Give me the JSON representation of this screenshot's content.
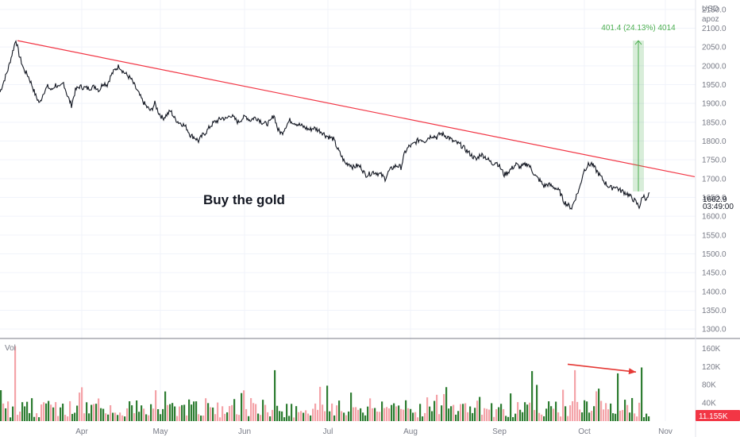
{
  "chart_data": {
    "type": "line",
    "currency": "USD",
    "unit": "apoz",
    "annotation_text": "Buy the gold",
    "price_axis": {
      "ylim": [
        1275,
        2175
      ],
      "ticks": [
        1300,
        1350,
        1400,
        1450,
        1500,
        1550,
        1600,
        1650,
        1700,
        1750,
        1800,
        1850,
        1900,
        1950,
        2000,
        2050,
        2100,
        2150
      ],
      "tick_labels": [
        "1300.0",
        "1350.0",
        "1400.0",
        "1450.0",
        "1500.0",
        "1550.0",
        "1600.0",
        "1650.0",
        "1700.0",
        "1750.0",
        "1800.0",
        "1850.0",
        "1900.0",
        "1950.0",
        "2000.0",
        "2050.0",
        "2100.0",
        "2150.0"
      ]
    },
    "volume_axis": {
      "label": "Vol",
      "ylim": [
        0,
        180000
      ],
      "ticks": [
        40000,
        80000,
        120000,
        160000
      ],
      "tick_labels": [
        "40K",
        "80K",
        "120K",
        "160K"
      ]
    },
    "time_axis": {
      "months": [
        "Apr",
        "May",
        "Jun",
        "Jul",
        "Aug",
        "Sep",
        "Oct",
        "Nov"
      ]
    },
    "price_series": {
      "points": [
        [
          0,
          1930
        ],
        [
          5,
          1960
        ],
        [
          10,
          1990
        ],
        [
          15,
          2030
        ],
        [
          20,
          2070
        ],
        [
          24,
          2030
        ],
        [
          30,
          1990
        ],
        [
          35,
          1975
        ],
        [
          40,
          1950
        ],
        [
          45,
          1920
        ],
        [
          50,
          1900
        ],
        [
          55,
          1930
        ],
        [
          60,
          1945
        ],
        [
          65,
          1935
        ],
        [
          70,
          1950
        ],
        [
          75,
          1940
        ],
        [
          80,
          1955
        ],
        [
          85,
          1920
        ],
        [
          90,
          1895
        ],
        [
          95,
          1935
        ],
        [
          100,
          1945
        ],
        [
          110,
          1940
        ],
        [
          120,
          1945
        ],
        [
          125,
          1935
        ],
        [
          130,
          1955
        ],
        [
          135,
          1950
        ],
        [
          140,
          1975
        ],
        [
          145,
          1990
        ],
        [
          150,
          2000
        ],
        [
          155,
          1985
        ],
        [
          160,
          1975
        ],
        [
          165,
          1965
        ],
        [
          170,
          1945
        ],
        [
          175,
          1925
        ],
        [
          180,
          1905
        ],
        [
          185,
          1890
        ],
        [
          190,
          1880
        ],
        [
          195,
          1900
        ],
        [
          200,
          1875
        ],
        [
          205,
          1860
        ],
        [
          210,
          1870
        ],
        [
          215,
          1880
        ],
        [
          220,
          1860
        ],
        [
          225,
          1850
        ],
        [
          230,
          1845
        ],
        [
          235,
          1835
        ],
        [
          240,
          1815
        ],
        [
          245,
          1810
        ],
        [
          250,
          1800
        ],
        [
          255,
          1815
        ],
        [
          260,
          1825
        ],
        [
          265,
          1840
        ],
        [
          270,
          1850
        ],
        [
          275,
          1855
        ],
        [
          280,
          1862
        ],
        [
          285,
          1858
        ],
        [
          290,
          1870
        ],
        [
          295,
          1860
        ],
        [
          300,
          1850
        ],
        [
          305,
          1860
        ],
        [
          310,
          1865
        ],
        [
          315,
          1855
        ],
        [
          320,
          1862
        ],
        [
          325,
          1860
        ],
        [
          330,
          1850
        ],
        [
          335,
          1845
        ],
        [
          340,
          1850
        ],
        [
          345,
          1870
        ],
        [
          350,
          1830
        ],
        [
          355,
          1820
        ],
        [
          360,
          1840
        ],
        [
          365,
          1855
        ],
        [
          370,
          1850
        ],
        [
          375,
          1845
        ],
        [
          380,
          1840
        ],
        [
          385,
          1835
        ],
        [
          390,
          1830
        ],
        [
          395,
          1835
        ],
        [
          400,
          1830
        ],
        [
          405,
          1825
        ],
        [
          410,
          1815
        ],
        [
          415,
          1810
        ],
        [
          420,
          1805
        ],
        [
          425,
          1780
        ],
        [
          430,
          1760
        ],
        [
          435,
          1740
        ],
        [
          440,
          1740
        ],
        [
          445,
          1730
        ],
        [
          450,
          1735
        ],
        [
          455,
          1730
        ],
        [
          460,
          1710
        ],
        [
          465,
          1712
        ],
        [
          470,
          1718
        ],
        [
          475,
          1715
        ],
        [
          480,
          1710
        ],
        [
          485,
          1700
        ],
        [
          490,
          1720
        ],
        [
          495,
          1730
        ],
        [
          500,
          1735
        ],
        [
          505,
          1730
        ],
        [
          510,
          1770
        ],
        [
          515,
          1785
        ],
        [
          520,
          1790
        ],
        [
          525,
          1800
        ],
        [
          530,
          1805
        ],
        [
          535,
          1800
        ],
        [
          540,
          1810
        ],
        [
          545,
          1815
        ],
        [
          550,
          1810
        ],
        [
          555,
          1820
        ],
        [
          560,
          1815
        ],
        [
          565,
          1810
        ],
        [
          570,
          1800
        ],
        [
          575,
          1795
        ],
        [
          580,
          1790
        ],
        [
          585,
          1780
        ],
        [
          590,
          1770
        ],
        [
          595,
          1760
        ],
        [
          600,
          1750
        ],
        [
          605,
          1765
        ],
        [
          610,
          1760
        ],
        [
          615,
          1750
        ],
        [
          620,
          1740
        ],
        [
          625,
          1745
        ],
        [
          630,
          1730
        ],
        [
          635,
          1710
        ],
        [
          640,
          1718
        ],
        [
          645,
          1728
        ],
        [
          650,
          1738
        ],
        [
          655,
          1730
        ],
        [
          660,
          1735
        ],
        [
          665,
          1740
        ],
        [
          670,
          1722
        ],
        [
          675,
          1705
        ],
        [
          680,
          1695
        ],
        [
          685,
          1680
        ],
        [
          690,
          1685
        ],
        [
          695,
          1680
        ],
        [
          700,
          1675
        ],
        [
          705,
          1665
        ],
        [
          710,
          1640
        ],
        [
          715,
          1630
        ],
        [
          720,
          1622
        ],
        [
          725,
          1650
        ],
        [
          730,
          1675
        ],
        [
          735,
          1720
        ],
        [
          740,
          1735
        ],
        [
          745,
          1740
        ],
        [
          750,
          1725
        ],
        [
          755,
          1710
        ],
        [
          760,
          1695
        ],
        [
          765,
          1682
        ],
        [
          770,
          1675
        ],
        [
          775,
          1680
        ],
        [
          780,
          1670
        ],
        [
          785,
          1665
        ],
        [
          790,
          1660
        ],
        [
          795,
          1650
        ],
        [
          800,
          1640
        ],
        [
          805,
          1625
        ],
        [
          810,
          1655
        ],
        [
          815,
          1645
        ],
        [
          818,
          1662.9
        ]
      ]
    },
    "last_price_label": "1662.9",
    "countdown_label": "03:49:00",
    "trendline": {
      "start": [
        22,
        2067
      ],
      "end": [
        875,
        1705
      ],
      "color": "#f23645"
    },
    "measure_box": {
      "x": [
        797,
        811
      ],
      "y_low": 1666,
      "y_high": 2067,
      "label": "401.4 (24.13%) 4014",
      "color": "#4caf50"
    },
    "volume_trend_arrow": {
      "start": [
        715,
        125000
      ],
      "end": [
        801,
        108000
      ],
      "color": "#e53935"
    },
    "last_volume_label": "11.155K",
    "up_color": "#2e7d32",
    "down_color": "#f4a3a8",
    "volume_tag_color": "#f23645"
  }
}
